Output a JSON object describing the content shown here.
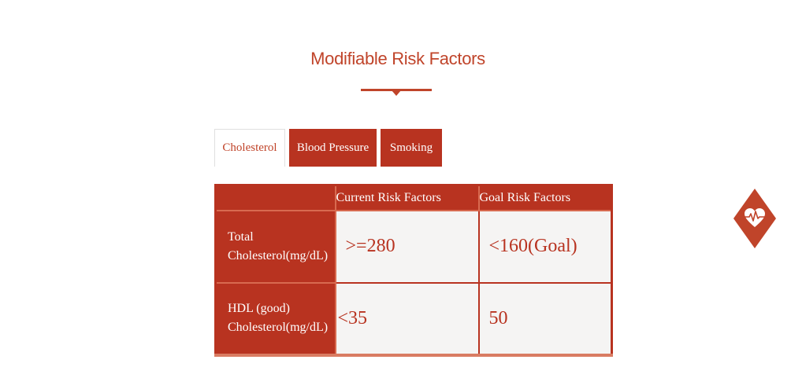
{
  "section": {
    "title": "Modifiable Risk Factors"
  },
  "tabs": [
    {
      "label": "Cholesterol",
      "active": true
    },
    {
      "label": "Blood Pressure",
      "active": false
    },
    {
      "label": "Smoking",
      "active": false
    }
  ],
  "table": {
    "headers": [
      "",
      "Current Risk Factors",
      "Goal Risk Factors"
    ],
    "rows": [
      {
        "label_line1": "Total",
        "label_line2": "Cholesterol(mg/dL)",
        "current": ">=280",
        "goal": "<160(Goal)"
      },
      {
        "label_line1": "HDL (good)",
        "label_line2": "Cholesterol(mg/dL)",
        "current": "<35",
        "goal": "50"
      }
    ]
  },
  "badge": {
    "icon": "heart-pulse-icon"
  },
  "colors": {
    "accent": "#c0442a",
    "table_red": "#b83320",
    "cell_bg": "#f5f4f3"
  }
}
